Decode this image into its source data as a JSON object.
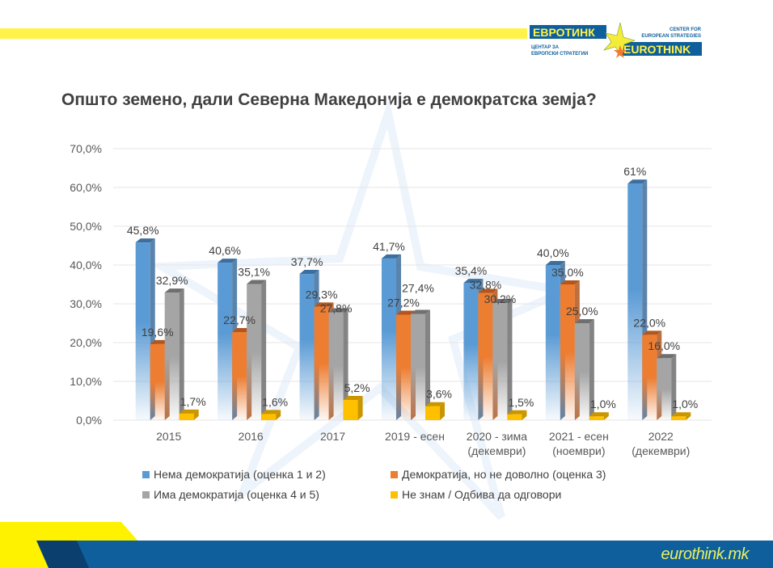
{
  "header": {
    "logo": {
      "text_mk": "ЕВРОТИНК",
      "subtitle_mk": "ЦЕНТАР ЗА ЕВРОПСКИ СТРАТЕГИИ",
      "subtitle_en": "CENTER FOR EUROPEAN STRATEGIES",
      "text_en": "EUROTHINK"
    }
  },
  "footer": {
    "url": "eurothink.mk"
  },
  "colors": {
    "accent_yellow": "#fff34a",
    "footer_blue": "#0f5f9c",
    "footer_dark": "#0b3f6e"
  },
  "chart_data": {
    "type": "bar",
    "style": "3d-clustered-column",
    "title": "Општо земено, дали Северна Македонија е демократска земја?",
    "categories": [
      "2015",
      "2016",
      "2017",
      "2019 - есен",
      "2020 - зима (декември)",
      "2021 - есен (ноември)",
      "2022 (декември)"
    ],
    "category_lines": [
      [
        "2015"
      ],
      [
        "2016"
      ],
      [
        "2017"
      ],
      [
        "2019 - есен"
      ],
      [
        "2020 - зима",
        "(декември)"
      ],
      [
        "2021 - есен",
        "(ноември)"
      ],
      [
        "2022",
        "(декември)"
      ]
    ],
    "ylim": [
      0,
      70
    ],
    "yticks": [
      "0,0%",
      "10,0%",
      "20,0%",
      "30,0%",
      "40,0%",
      "50,0%",
      "60,0%",
      "70,0%"
    ],
    "grid": true,
    "legend_position": "bottom",
    "series": [
      {
        "name": "Нема демократија (оценка 1 и 2)",
        "color": "#5b9bd5",
        "values": [
          45.8,
          40.6,
          37.7,
          41.7,
          35.4,
          40.0,
          61
        ],
        "labels": [
          "45,8%",
          "40,6%",
          "37,7%",
          "41,7%",
          "35,4%",
          "40,0%",
          "61%"
        ]
      },
      {
        "name": "Демократија, но не доволно (оценка 3)",
        "color": "#ed7d31",
        "values": [
          19.6,
          22.7,
          29.3,
          27.2,
          32.8,
          35.0,
          22.0
        ],
        "labels": [
          "19,6%",
          "22,7%",
          "29,3%",
          "27,2%",
          "32,8%",
          "35,0%",
          "22,0%"
        ]
      },
      {
        "name": "Има демократија (оценка 4 и 5)",
        "color": "#a5a5a5",
        "values": [
          32.9,
          35.1,
          27.8,
          27.4,
          30.2,
          25.0,
          16.0
        ],
        "labels": [
          "32,9%",
          "35,1%",
          "27,8%",
          "27,4%",
          "30,2%",
          "25,0%",
          "16,0%"
        ]
      },
      {
        "name": "Не знам / Одбива да одговори",
        "color": "#ffc000",
        "values": [
          1.7,
          1.6,
          5.2,
          3.6,
          1.5,
          1.0,
          1.0
        ],
        "labels": [
          "1,7%",
          "1,6%",
          "5,2%",
          "3,6%",
          "1,5%",
          "1,0%",
          "1,0%"
        ]
      }
    ]
  }
}
